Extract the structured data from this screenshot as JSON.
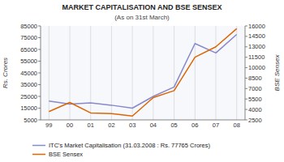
{
  "chart_data": {
    "type": "line",
    "title": "MARKET CAPITALISATION AND BSE SENSEX",
    "subtitle": "(As on 31st March)",
    "ylabel": "Rs. Crores",
    "y2label": "BSE  Sensex",
    "categories": [
      "99",
      "00",
      "01",
      "02",
      "03",
      "04",
      "05",
      "06",
      "07",
      "08"
    ],
    "series": [
      {
        "name": "ITC's Market Capitalisation (31.03.2008 : Rs. 77765 Crores)",
        "color": "#8888cc",
        "values": [
          21000,
          18500,
          19500,
          17500,
          15000,
          25000,
          33000,
          70000,
          62000,
          77765
        ]
      },
      {
        "name": "BSE Sensex",
        "color": "#dd6600",
        "axis": "y2",
        "values": [
          3700,
          5000,
          3500,
          3400,
          3050,
          5700,
          6700,
          11500,
          13000,
          15600
        ]
      }
    ],
    "ylim": [
      5000,
      85000
    ],
    "yticks": [
      5000,
      15000,
      25000,
      35000,
      45000,
      55000,
      65000,
      75000,
      85000
    ],
    "y2lim": [
      2500,
      16000
    ],
    "y2ticks": [
      2500,
      4000,
      5500,
      7000,
      8500,
      10000,
      11500,
      13000,
      14500,
      16000
    ],
    "grid": true,
    "legend": "lower left"
  }
}
